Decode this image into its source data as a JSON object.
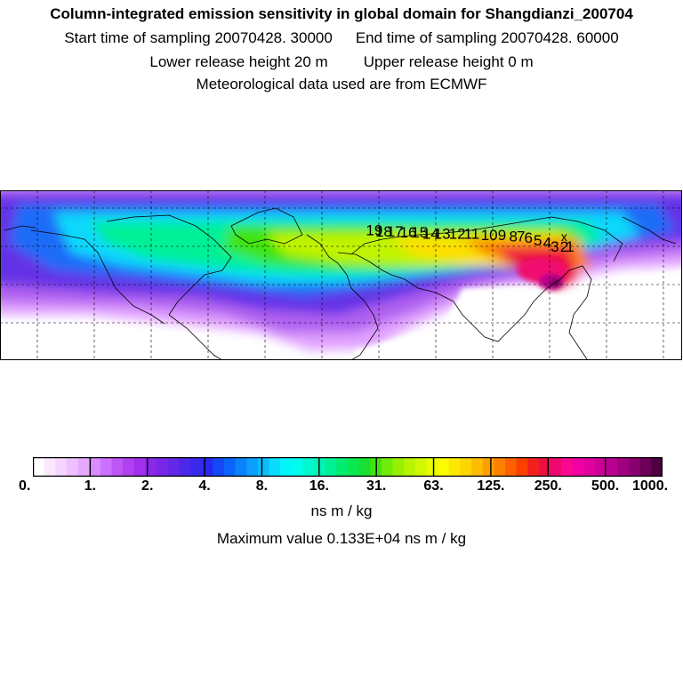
{
  "header": {
    "title": "Column-integrated emission sensitivity in global domain for Shangdianzi_200704",
    "start_sampling": "Start time of sampling 20070428. 30000",
    "end_sampling": "End time of sampling 20070428. 60000",
    "lower_release": "Lower release height   20 m",
    "upper_release": "Upper release height    0 m",
    "met_data": "Meteorological data used are from ECMWF"
  },
  "map": {
    "trajectory_labels": [
      "1",
      "2",
      "3",
      "4",
      "5",
      "6",
      "7",
      "8",
      "9",
      "10",
      "11",
      "12",
      "13",
      "14",
      "15",
      "16",
      "17",
      "18",
      "19"
    ],
    "trajectory_lon": [
      121,
      118,
      113,
      109,
      104,
      99,
      95,
      91,
      85,
      76,
      67,
      59,
      51,
      45,
      39,
      33,
      26,
      20,
      15
    ],
    "trajectory_lat": [
      33,
      33,
      33,
      36,
      38,
      40,
      41,
      41,
      42,
      42,
      43,
      43,
      43,
      43,
      44,
      44,
      45,
      45,
      46
    ],
    "receptor_lon": 117.1,
    "receptor_lat": 40.6,
    "receptor_marker": "x"
  },
  "colorbar": {
    "tick_labels": [
      "0.",
      "1.",
      "2.",
      "4.",
      "8.",
      "16.",
      "31.",
      "63.",
      "125.",
      "250.",
      "500.",
      "1000."
    ],
    "colors": [
      "#ffffff",
      "#fbe8ff",
      "#f5d4ff",
      "#efc0ff",
      "#e6a8ff",
      "#d98cff",
      "#cc70ff",
      "#be55f5",
      "#b040f0",
      "#a030ee",
      "#8c28e8",
      "#7828e6",
      "#6428e6",
      "#4c28e8",
      "#3a28ee",
      "#2828f2",
      "#1448f8",
      "#0a64fc",
      "#0a82fc",
      "#0aa0fc",
      "#0abefc",
      "#08dcfc",
      "#04f4fc",
      "#00fcec",
      "#00f8d0",
      "#00f4b4",
      "#00f098",
      "#00ec70",
      "#08e850",
      "#18e030",
      "#40e410",
      "#70ec08",
      "#98f000",
      "#b8f400",
      "#d0f800",
      "#e8fc00",
      "#fcfc00",
      "#fce800",
      "#fcd400",
      "#fcbc00",
      "#fca000",
      "#fc8000",
      "#fc6000",
      "#fc4000",
      "#f42020",
      "#ec1040",
      "#f00870",
      "#fc0890",
      "#f000a0",
      "#e000a0",
      "#cc0098",
      "#b80090",
      "#a00080",
      "#880070",
      "#6a0058",
      "#4e0040"
    ],
    "units": "ns m / kg",
    "max_value": "Maximum value  0.133E+04 ns m / kg"
  }
}
